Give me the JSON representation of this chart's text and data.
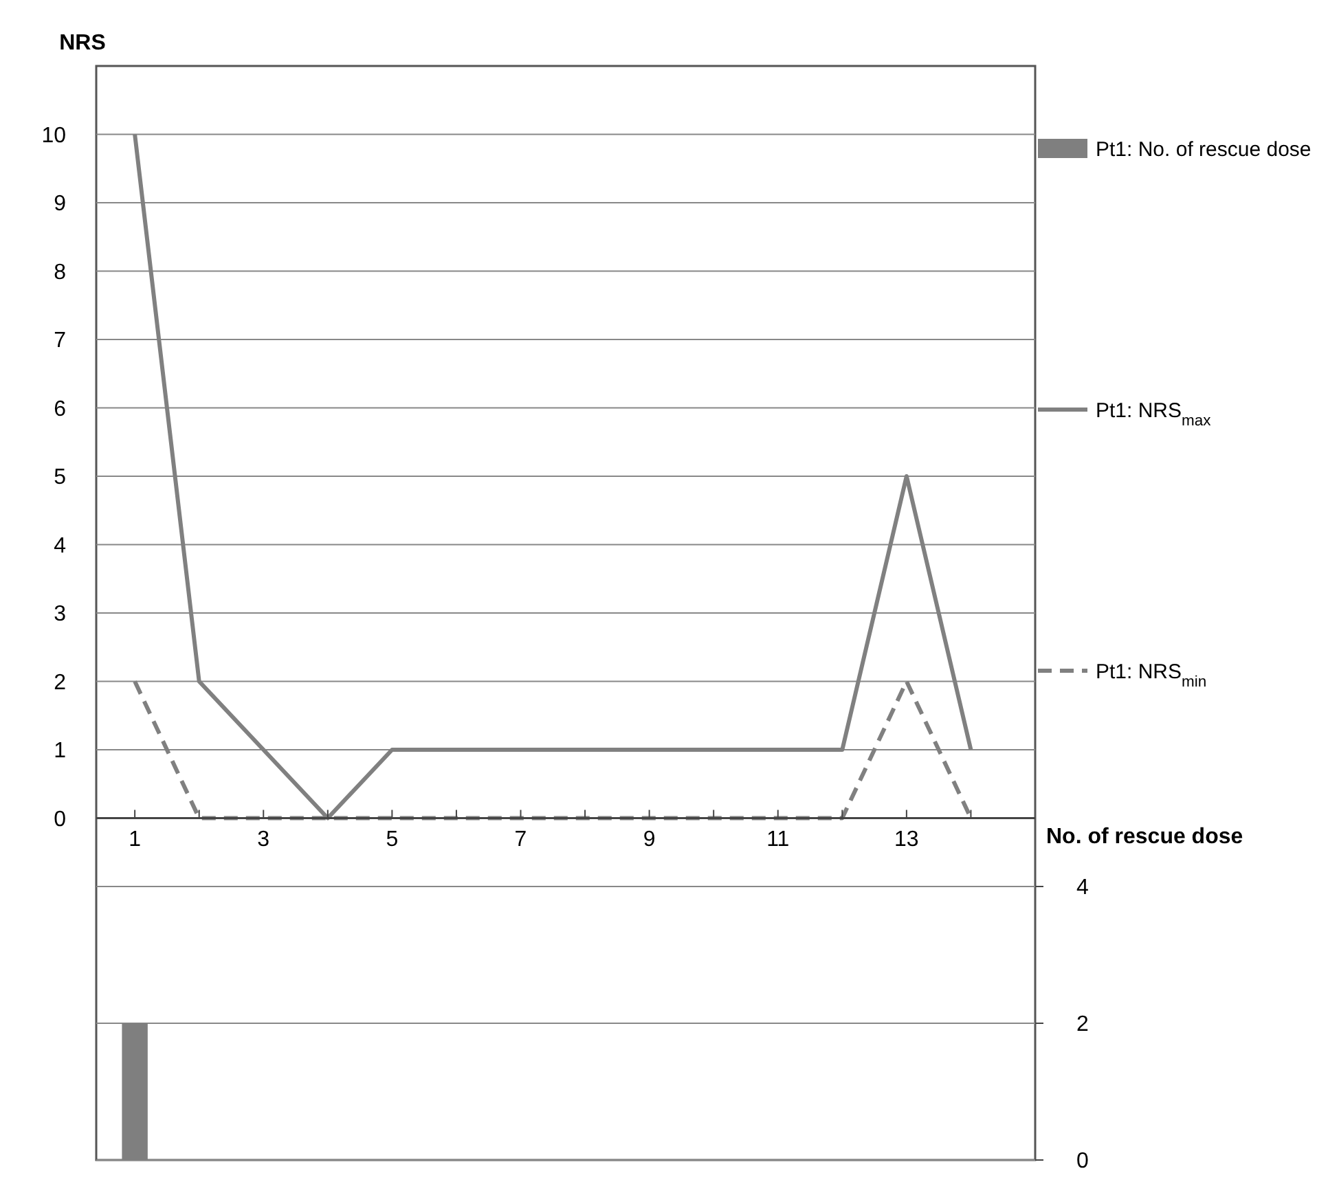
{
  "chart_data": {
    "type": "line",
    "ylabel": "NRS",
    "y2label": "No. of rescue dose",
    "x": [
      1,
      2,
      3,
      4,
      5,
      6,
      7,
      8,
      9,
      10,
      11,
      12,
      13,
      14
    ],
    "xlim": [
      0.4,
      15
    ],
    "xticks": [
      1,
      3,
      5,
      7,
      9,
      11,
      13
    ],
    "series": [
      {
        "name": "Pt1: No. of rescue dose",
        "type": "bar",
        "axis": "y2",
        "color": "#7f7f7f",
        "values": [
          2,
          null,
          null,
          null,
          null,
          null,
          null,
          null,
          null,
          null,
          null,
          null,
          null,
          null
        ]
      },
      {
        "name": "Pt1: NRS$_{max}$",
        "color": "#808080",
        "line_style": "solid",
        "values": [
          10,
          2,
          1,
          0,
          1,
          1,
          1,
          1,
          1,
          1,
          1,
          1,
          5,
          1
        ]
      },
      {
        "name": "Pt1: NRS$_{min}$",
        "color": "#808080",
        "line_style": "dashed",
        "values": [
          2,
          0,
          0,
          0,
          0,
          0,
          0,
          0,
          0,
          0,
          0,
          0,
          2,
          0
        ]
      }
    ],
    "ylim": [
      -5,
      11
    ],
    "yticks": [
      0,
      1,
      2,
      3,
      4,
      5,
      6,
      7,
      8,
      9,
      10
    ],
    "y2lim": [
      0,
      16
    ],
    "y2ticks": [
      0,
      2,
      4
    ],
    "grid": "y",
    "legend": "right"
  }
}
